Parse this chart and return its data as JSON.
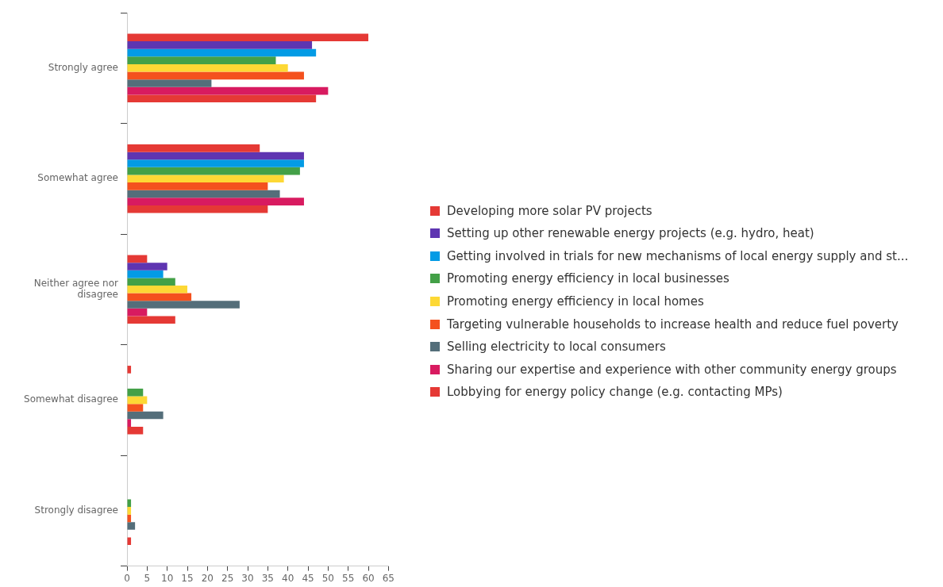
{
  "chart_data": {
    "type": "bar",
    "orientation": "horizontal",
    "categories": [
      "Strongly agree",
      "Somewhat agree",
      "Neither agree nor disagree",
      "Somewhat disagree",
      "Strongly disagree"
    ],
    "series": [
      {
        "name": "Developing more solar PV projects",
        "color": "#e53935",
        "values": [
          60,
          33,
          5,
          1,
          0
        ]
      },
      {
        "name": "Setting up other renewable energy projects (e.g. hydro, heat)",
        "color": "#5e35b1",
        "values": [
          46,
          44,
          10,
          0,
          0
        ]
      },
      {
        "name": "Getting involved in trials for new mechanisms of local energy supply and st...",
        "color": "#039be5",
        "values": [
          47,
          44,
          9,
          0,
          0
        ]
      },
      {
        "name": "Promoting energy efficiency in local businesses",
        "color": "#43a047",
        "values": [
          37,
          43,
          12,
          4,
          1
        ]
      },
      {
        "name": "Promoting energy efficiency in local homes",
        "color": "#fdd835",
        "values": [
          40,
          39,
          15,
          5,
          1
        ]
      },
      {
        "name": "Targeting vulnerable households to increase health and reduce fuel poverty",
        "color": "#f4511e",
        "values": [
          44,
          35,
          16,
          4,
          1
        ]
      },
      {
        "name": "Selling electricity to local consumers",
        "color": "#546e7a",
        "values": [
          21,
          38,
          28,
          9,
          2
        ]
      },
      {
        "name": "Sharing our expertise and experience with other community energy groups",
        "color": "#d81b60",
        "values": [
          50,
          44,
          5,
          1,
          0
        ]
      },
      {
        "name": "Lobbying for energy policy change (e.g. contacting MPs)",
        "color": "#e53935",
        "values": [
          47,
          35,
          12,
          4,
          1
        ]
      }
    ],
    "xlim": [
      0,
      65
    ],
    "xticks": [
      0,
      5,
      10,
      15,
      20,
      25,
      30,
      35,
      40,
      45,
      50,
      55,
      60,
      65
    ],
    "grid": false,
    "legend": "right"
  }
}
